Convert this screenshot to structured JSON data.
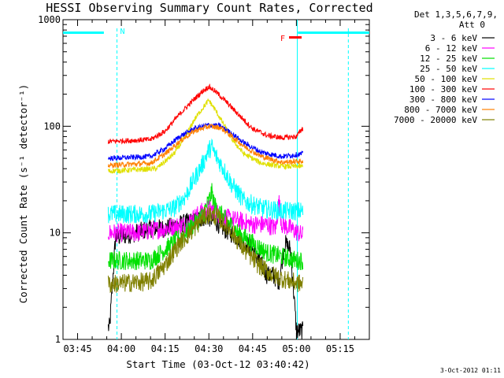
{
  "chart_data": {
    "type": "line",
    "title": "HESSI Observing Summary Count Rates, Corrected",
    "xlabel": "Start Time (03-Oct-12 03:40:42)",
    "ylabel": "Corrected Count Rate (s⁻¹ detector⁻¹)",
    "ylog": true,
    "ylim": [
      1,
      1000
    ],
    "xlim_minutes": [
      220,
      325
    ],
    "x_ticks": [
      {
        "label": "03:45",
        "minutes": 225
      },
      {
        "label": "04:00",
        "minutes": 240
      },
      {
        "label": "04:15",
        "minutes": 255
      },
      {
        "label": "04:30",
        "minutes": 270
      },
      {
        "label": "04:45",
        "minutes": 285
      },
      {
        "label": "05:00",
        "minutes": 300
      },
      {
        "label": "05:15",
        "minutes": 315
      }
    ],
    "y_ticks": [
      {
        "label": "1",
        "value": 1
      },
      {
        "label": "10",
        "value": 10
      },
      {
        "label": "100",
        "value": 100
      },
      {
        "label": "1000",
        "value": 1000
      }
    ],
    "legend_header": [
      "Det 1,3,5,6,7,9,",
      "Att 0"
    ],
    "legend_placement": "right",
    "data_window_minutes": [
      235.5,
      302.3
    ],
    "series": [
      {
        "name": "3 - 6 keV",
        "color": "#000000",
        "points": [
          [
            236,
            1.3
          ],
          [
            238,
            9
          ],
          [
            245,
            10
          ],
          [
            250,
            11
          ],
          [
            255,
            11
          ],
          [
            260,
            12
          ],
          [
            265,
            13
          ],
          [
            268,
            14
          ],
          [
            270,
            14
          ],
          [
            272,
            13
          ],
          [
            275,
            11
          ],
          [
            280,
            9
          ],
          [
            285,
            7
          ],
          [
            288,
            5
          ],
          [
            290,
            4
          ],
          [
            292,
            4
          ],
          [
            294,
            3.5
          ],
          [
            296,
            8
          ],
          [
            298,
            7
          ],
          [
            299,
            3
          ],
          [
            300,
            1.2
          ]
        ]
      },
      {
        "name": "6 - 12 keV",
        "color": "#ff00ff",
        "points": [
          [
            236,
            10
          ],
          [
            245,
            10
          ],
          [
            255,
            11
          ],
          [
            262,
            12
          ],
          [
            265,
            14
          ],
          [
            268,
            16
          ],
          [
            270,
            17
          ],
          [
            272,
            16
          ],
          [
            275,
            14
          ],
          [
            280,
            13
          ],
          [
            285,
            12
          ],
          [
            290,
            12
          ],
          [
            293,
            11
          ],
          [
            294,
            20
          ],
          [
            295,
            12
          ],
          [
            298,
            11
          ],
          [
            302,
            9.5
          ]
        ]
      },
      {
        "name": "12 - 25 keV",
        "color": "#00e000",
        "points": [
          [
            236,
            5.5
          ],
          [
            250,
            5.5
          ],
          [
            255,
            7
          ],
          [
            260,
            9
          ],
          [
            265,
            12
          ],
          [
            268,
            15
          ],
          [
            270,
            20
          ],
          [
            271,
            24
          ],
          [
            272,
            18
          ],
          [
            275,
            14
          ],
          [
            280,
            10
          ],
          [
            285,
            8
          ],
          [
            290,
            6.5
          ],
          [
            295,
            6
          ],
          [
            300,
            5.5
          ],
          [
            302,
            5.5
          ]
        ]
      },
      {
        "name": "25 - 50 keV",
        "color": "#00ffff",
        "points": [
          [
            236,
            15
          ],
          [
            250,
            15
          ],
          [
            258,
            17
          ],
          [
            262,
            22
          ],
          [
            265,
            32
          ],
          [
            268,
            45
          ],
          [
            270,
            60
          ],
          [
            271,
            64
          ],
          [
            272,
            55
          ],
          [
            275,
            40
          ],
          [
            278,
            28
          ],
          [
            282,
            20
          ],
          [
            288,
            17
          ],
          [
            295,
            16
          ],
          [
            302,
            16
          ]
        ]
      },
      {
        "name": "50 - 100 keV",
        "color": "#e0e000",
        "points": [
          [
            236,
            38
          ],
          [
            252,
            40
          ],
          [
            258,
            55
          ],
          [
            262,
            80
          ],
          [
            265,
            115
          ],
          [
            268,
            150
          ],
          [
            270,
            175
          ],
          [
            272,
            145
          ],
          [
            275,
            105
          ],
          [
            278,
            75
          ],
          [
            282,
            55
          ],
          [
            288,
            45
          ],
          [
            295,
            42
          ],
          [
            302,
            42
          ]
        ]
      },
      {
        "name": "100 - 300 keV",
        "color": "#ff0000",
        "points": [
          [
            236,
            72
          ],
          [
            250,
            75
          ],
          [
            255,
            90
          ],
          [
            260,
            130
          ],
          [
            265,
            180
          ],
          [
            268,
            215
          ],
          [
            270,
            235
          ],
          [
            272,
            215
          ],
          [
            275,
            180
          ],
          [
            280,
            130
          ],
          [
            285,
            95
          ],
          [
            290,
            82
          ],
          [
            295,
            78
          ],
          [
            300,
            80
          ],
          [
            302,
            95
          ]
        ]
      },
      {
        "name": "300 - 800 keV",
        "color": "#0000ff",
        "points": [
          [
            236,
            50
          ],
          [
            250,
            52
          ],
          [
            255,
            62
          ],
          [
            260,
            80
          ],
          [
            265,
            95
          ],
          [
            270,
            103
          ],
          [
            274,
            100
          ],
          [
            278,
            85
          ],
          [
            282,
            70
          ],
          [
            288,
            57
          ],
          [
            295,
            52
          ],
          [
            302,
            55
          ]
        ]
      },
      {
        "name": "800 - 7000 keV",
        "color": "#ff8000",
        "points": [
          [
            236,
            43
          ],
          [
            250,
            45
          ],
          [
            255,
            55
          ],
          [
            260,
            72
          ],
          [
            265,
            90
          ],
          [
            270,
            100
          ],
          [
            274,
            97
          ],
          [
            278,
            80
          ],
          [
            282,
            65
          ],
          [
            288,
            52
          ],
          [
            295,
            46
          ],
          [
            302,
            47
          ]
        ]
      },
      {
        "name": "7000 - 20000 keV",
        "color": "#808000",
        "points": [
          [
            236,
            3.3
          ],
          [
            250,
            3.5
          ],
          [
            255,
            5
          ],
          [
            260,
            8
          ],
          [
            265,
            11
          ],
          [
            268,
            14
          ],
          [
            270,
            15
          ],
          [
            273,
            14
          ],
          [
            277,
            11
          ],
          [
            282,
            7
          ],
          [
            287,
            5
          ],
          [
            292,
            4
          ],
          [
            298,
            3.5
          ],
          [
            302,
            3.3
          ]
        ]
      }
    ],
    "annotations": [
      {
        "text": "N",
        "color": "#00ffff"
      },
      {
        "text": "F",
        "color": "#ff0000"
      }
    ],
    "night_bars": [
      [
        220,
        234
      ],
      [
        300.5,
        325
      ]
    ],
    "dashed_lines_minutes": [
      238.5,
      317.8
    ],
    "solid_line_minutes": 300.3
  },
  "footer_stamp": "3-Oct-2012 01:11"
}
